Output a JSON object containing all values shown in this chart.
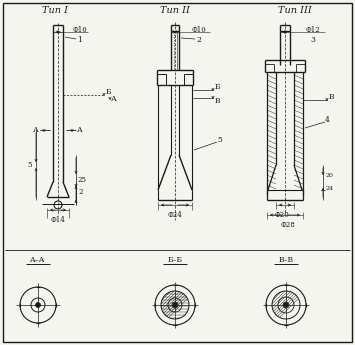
{
  "title_1": "Тип I",
  "title_2": "Тип II",
  "title_3": "Тип III",
  "bg_color": "#f5f5f0",
  "line_color": "#1a1a1a"
}
